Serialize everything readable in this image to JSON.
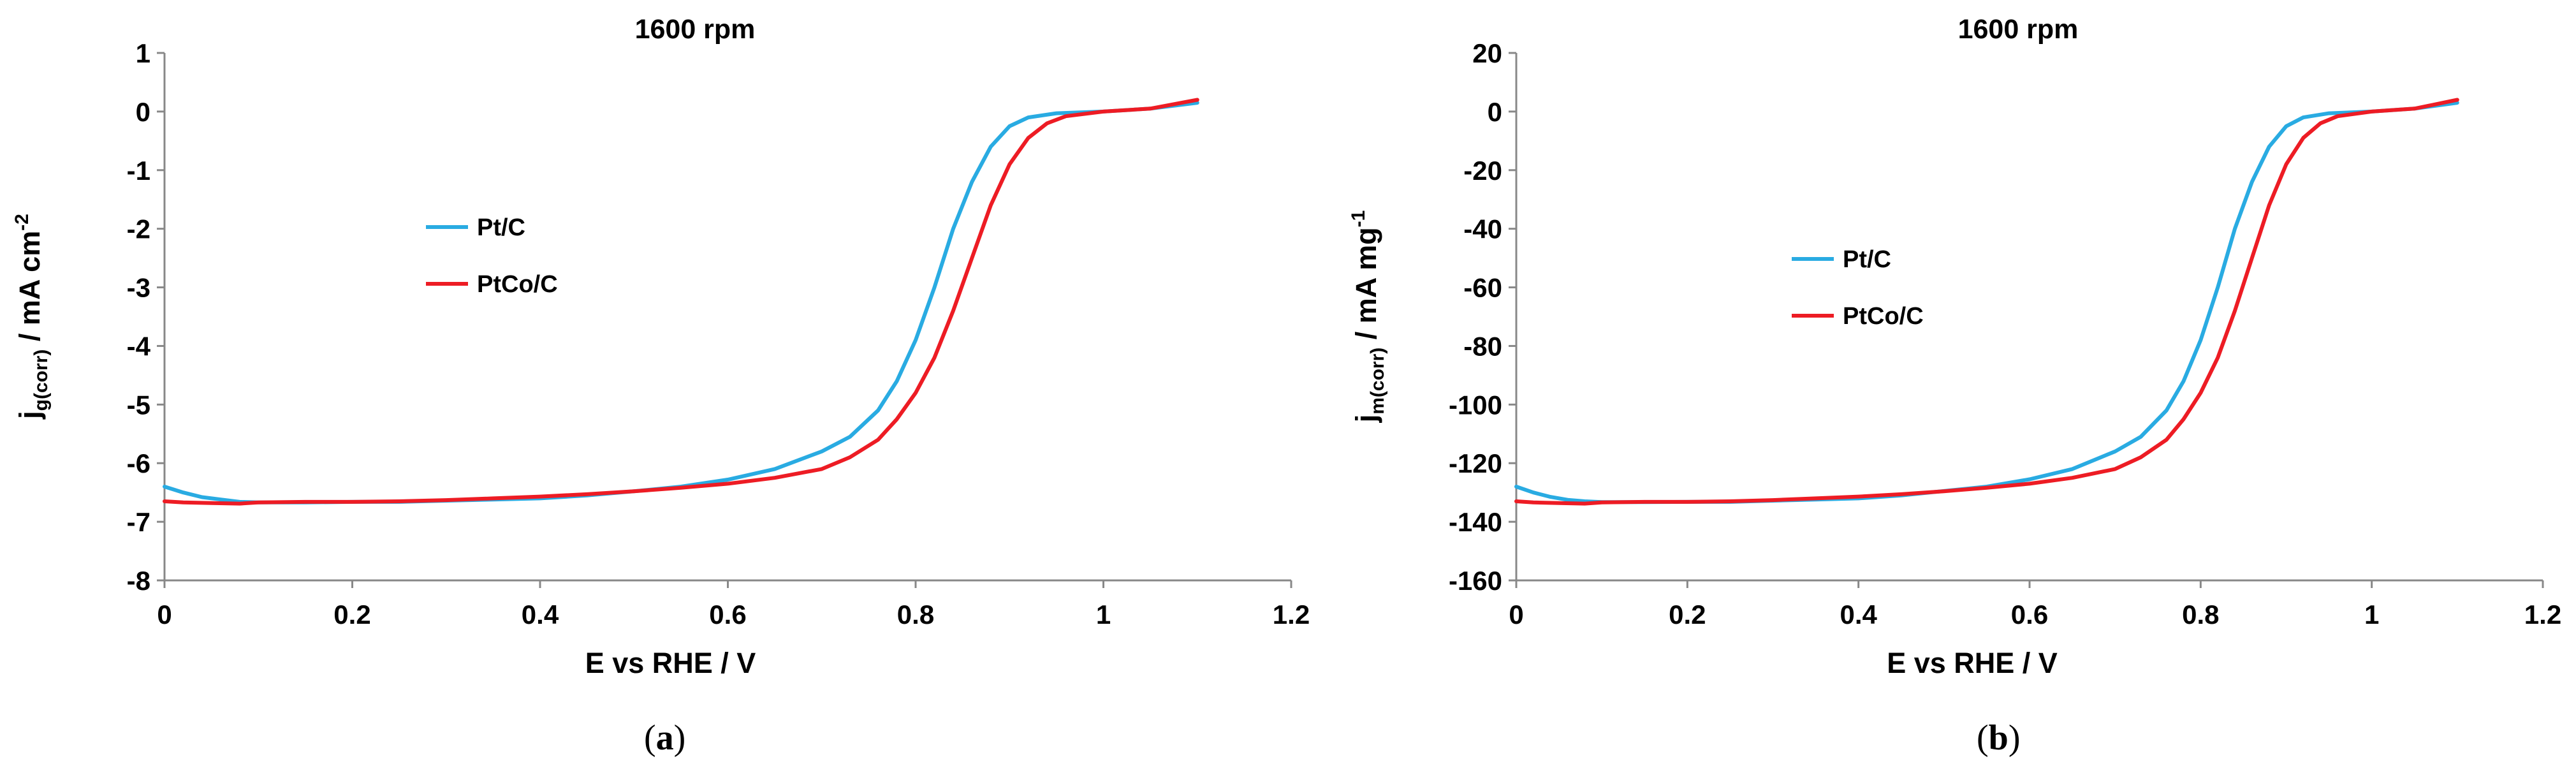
{
  "chart_data": [
    {
      "type": "line",
      "panel": "a",
      "caption": "(a)",
      "caption_letter": "a",
      "title": "1600 rpm",
      "xlabel": "E vs RHE / V",
      "ylabel_main": "j",
      "ylabel_sub": "g(corr)",
      "ylabel_rest": " / mA cm",
      "ylabel_sup": "-2",
      "xlim": [
        0,
        1.2
      ],
      "ylim": [
        -8,
        1
      ],
      "x_ticks": [
        0,
        0.2,
        0.4,
        0.6,
        0.8,
        1,
        1.2
      ],
      "x_tick_labels": [
        "0",
        "0.2",
        "0.4",
        "0.6",
        "0.8",
        "1",
        "1.2"
      ],
      "y_ticks": [
        1,
        0,
        -1,
        -2,
        -3,
        -4,
        -5,
        -6,
        -7,
        -8
      ],
      "y_tick_labels": [
        "1",
        "0",
        "-1",
        "-2",
        "-3",
        "-4",
        "-5",
        "-6",
        "-7",
        "-8"
      ],
      "grid": false,
      "legend": [
        {
          "name": "Pt/C",
          "color": "#29abe2"
        },
        {
          "name": "PtCo/C",
          "color": "#ed1c24"
        }
      ],
      "series": [
        {
          "name": "Pt/C",
          "color": "#29abe2",
          "points": [
            [
              0.0,
              -6.4
            ],
            [
              0.02,
              -6.5
            ],
            [
              0.04,
              -6.58
            ],
            [
              0.06,
              -6.62
            ],
            [
              0.08,
              -6.66
            ],
            [
              0.1,
              -6.67
            ],
            [
              0.15,
              -6.67
            ],
            [
              0.2,
              -6.66
            ],
            [
              0.25,
              -6.66
            ],
            [
              0.3,
              -6.64
            ],
            [
              0.35,
              -6.62
            ],
            [
              0.4,
              -6.6
            ],
            [
              0.45,
              -6.55
            ],
            [
              0.5,
              -6.48
            ],
            [
              0.55,
              -6.4
            ],
            [
              0.6,
              -6.28
            ],
            [
              0.65,
              -6.1
            ],
            [
              0.7,
              -5.8
            ],
            [
              0.73,
              -5.55
            ],
            [
              0.76,
              -5.1
            ],
            [
              0.78,
              -4.6
            ],
            [
              0.8,
              -3.9
            ],
            [
              0.82,
              -3.0
            ],
            [
              0.84,
              -2.0
            ],
            [
              0.86,
              -1.2
            ],
            [
              0.88,
              -0.6
            ],
            [
              0.9,
              -0.25
            ],
            [
              0.92,
              -0.1
            ],
            [
              0.95,
              -0.03
            ],
            [
              1.0,
              0.0
            ],
            [
              1.05,
              0.05
            ],
            [
              1.1,
              0.15
            ]
          ]
        },
        {
          "name": "PtCo/C",
          "color": "#ed1c24",
          "points": [
            [
              0.0,
              -6.65
            ],
            [
              0.02,
              -6.67
            ],
            [
              0.05,
              -6.68
            ],
            [
              0.08,
              -6.69
            ],
            [
              0.1,
              -6.67
            ],
            [
              0.15,
              -6.66
            ],
            [
              0.2,
              -6.66
            ],
            [
              0.25,
              -6.65
            ],
            [
              0.3,
              -6.63
            ],
            [
              0.35,
              -6.6
            ],
            [
              0.4,
              -6.57
            ],
            [
              0.45,
              -6.53
            ],
            [
              0.5,
              -6.48
            ],
            [
              0.55,
              -6.42
            ],
            [
              0.6,
              -6.35
            ],
            [
              0.65,
              -6.25
            ],
            [
              0.7,
              -6.1
            ],
            [
              0.73,
              -5.9
            ],
            [
              0.76,
              -5.6
            ],
            [
              0.78,
              -5.25
            ],
            [
              0.8,
              -4.8
            ],
            [
              0.82,
              -4.2
            ],
            [
              0.84,
              -3.4
            ],
            [
              0.86,
              -2.5
            ],
            [
              0.88,
              -1.6
            ],
            [
              0.9,
              -0.9
            ],
            [
              0.92,
              -0.45
            ],
            [
              0.94,
              -0.2
            ],
            [
              0.96,
              -0.08
            ],
            [
              1.0,
              0.0
            ],
            [
              1.05,
              0.05
            ],
            [
              1.1,
              0.2
            ]
          ]
        }
      ]
    },
    {
      "type": "line",
      "panel": "b",
      "caption": "(b)",
      "caption_letter": "b",
      "title": "1600 rpm",
      "xlabel": "E vs RHE / V",
      "ylabel_main": "j",
      "ylabel_sub": "m(corr)",
      "ylabel_rest": " / mA mg",
      "ylabel_sup": "-1",
      "xlim": [
        0,
        1.2
      ],
      "ylim": [
        -160,
        20
      ],
      "x_ticks": [
        0,
        0.2,
        0.4,
        0.6,
        0.8,
        1,
        1.2
      ],
      "x_tick_labels": [
        "0",
        "0.2",
        "0.4",
        "0.6",
        "0.8",
        "1",
        "1.2"
      ],
      "y_ticks": [
        20,
        0,
        -20,
        -40,
        -60,
        -80,
        -100,
        -120,
        -140,
        -160
      ],
      "y_tick_labels": [
        "20",
        "0",
        "-20",
        "-40",
        "-60",
        "-80",
        "-100",
        "-120",
        "-140",
        "-160"
      ],
      "grid": false,
      "legend": [
        {
          "name": "Pt/C",
          "color": "#29abe2"
        },
        {
          "name": "PtCo/C",
          "color": "#ed1c24"
        }
      ],
      "series": [
        {
          "name": "Pt/C",
          "color": "#29abe2",
          "points": [
            [
              0.0,
              -128
            ],
            [
              0.02,
              -130
            ],
            [
              0.04,
              -131.5
            ],
            [
              0.06,
              -132.5
            ],
            [
              0.08,
              -133
            ],
            [
              0.1,
              -133.3
            ],
            [
              0.15,
              -133.3
            ],
            [
              0.2,
              -133.2
            ],
            [
              0.25,
              -133.2
            ],
            [
              0.3,
              -132.8
            ],
            [
              0.35,
              -132.4
            ],
            [
              0.4,
              -132
            ],
            [
              0.45,
              -131
            ],
            [
              0.5,
              -129.5
            ],
            [
              0.55,
              -128
            ],
            [
              0.6,
              -125.5
            ],
            [
              0.65,
              -122
            ],
            [
              0.7,
              -116
            ],
            [
              0.73,
              -111
            ],
            [
              0.76,
              -102
            ],
            [
              0.78,
              -92
            ],
            [
              0.8,
              -78
            ],
            [
              0.82,
              -60
            ],
            [
              0.84,
              -40
            ],
            [
              0.86,
              -24
            ],
            [
              0.88,
              -12
            ],
            [
              0.9,
              -5
            ],
            [
              0.92,
              -2
            ],
            [
              0.95,
              -0.6
            ],
            [
              1.0,
              0
            ],
            [
              1.05,
              1
            ],
            [
              1.1,
              3
            ]
          ]
        },
        {
          "name": "PtCo/C",
          "color": "#ed1c24",
          "points": [
            [
              0.0,
              -133
            ],
            [
              0.02,
              -133.4
            ],
            [
              0.05,
              -133.6
            ],
            [
              0.08,
              -133.8
            ],
            [
              0.1,
              -133.4
            ],
            [
              0.15,
              -133.2
            ],
            [
              0.2,
              -133.2
            ],
            [
              0.25,
              -133
            ],
            [
              0.3,
              -132.6
            ],
            [
              0.35,
              -132
            ],
            [
              0.4,
              -131.4
            ],
            [
              0.45,
              -130.6
            ],
            [
              0.5,
              -129.6
            ],
            [
              0.55,
              -128.4
            ],
            [
              0.6,
              -127
            ],
            [
              0.65,
              -125
            ],
            [
              0.7,
              -122
            ],
            [
              0.73,
              -118
            ],
            [
              0.76,
              -112
            ],
            [
              0.78,
              -105
            ],
            [
              0.8,
              -96
            ],
            [
              0.82,
              -84
            ],
            [
              0.84,
              -68
            ],
            [
              0.86,
              -50
            ],
            [
              0.88,
              -32
            ],
            [
              0.9,
              -18
            ],
            [
              0.92,
              -9
            ],
            [
              0.94,
              -4
            ],
            [
              0.96,
              -1.6
            ],
            [
              1.0,
              0
            ],
            [
              1.05,
              1
            ],
            [
              1.1,
              4
            ]
          ]
        }
      ]
    }
  ]
}
